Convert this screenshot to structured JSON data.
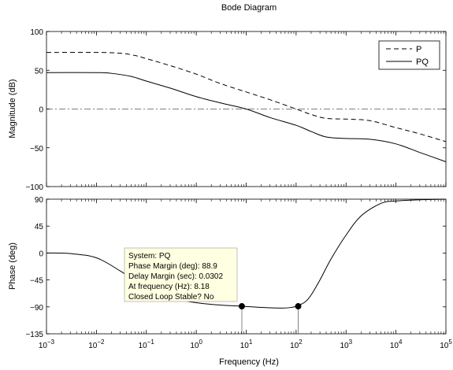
{
  "chart_data": {
    "type": "line",
    "title": "Bode Diagram",
    "xlabel": "Frequency  (Hz)",
    "x_scale": "log",
    "xlim": [
      0.001,
      100000
    ],
    "x_ticks": [
      {
        "value": 0.001,
        "base": "10",
        "exp": "−3"
      },
      {
        "value": 0.01,
        "base": "10",
        "exp": "−2"
      },
      {
        "value": 0.1,
        "base": "10",
        "exp": "−1"
      },
      {
        "value": 1,
        "base": "10",
        "exp": "0"
      },
      {
        "value": 10,
        "base": "10",
        "exp": "1"
      },
      {
        "value": 100,
        "base": "10",
        "exp": "2"
      },
      {
        "value": 1000,
        "base": "10",
        "exp": "3"
      },
      {
        "value": 10000,
        "base": "10",
        "exp": "4"
      },
      {
        "value": 100000,
        "base": "10",
        "exp": "5"
      }
    ],
    "legend": {
      "position": "top-right",
      "entries": [
        {
          "name": "P",
          "dash": "dashed"
        },
        {
          "name": "PQ",
          "dash": "solid"
        }
      ]
    },
    "panels": [
      {
        "ylabel": "Magnitude (dB)",
        "ylim": [
          -100,
          100
        ],
        "y_ticks": [
          {
            "value": 100,
            "label": "100"
          },
          {
            "value": 50,
            "label": "50"
          },
          {
            "value": 0,
            "label": "0"
          },
          {
            "value": -50,
            "label": "−50"
          },
          {
            "value": -100,
            "label": "−100"
          }
        ],
        "reference_line": 0,
        "series": [
          {
            "name": "P",
            "dash": "dashed",
            "x": [
              0.001,
              0.01,
              0.03,
              0.06,
              0.1,
              0.3,
              1,
              3,
              10,
              30,
              100,
              200,
              400,
              1000,
              3000,
              10000,
              30000,
              100000
            ],
            "y": [
              73,
              73,
              72,
              69,
              65,
              56,
              45,
              33,
              22,
              12,
              0,
              -7,
              -12,
              -13,
              -15,
              -24,
              -32,
              -42
            ]
          },
          {
            "name": "PQ",
            "dash": "solid",
            "x": [
              0.001,
              0.01,
              0.02,
              0.05,
              0.1,
              0.3,
              1,
              3,
              10,
              30,
              100,
              200,
              400,
              1000,
              3000,
              10000,
              30000,
              100000
            ],
            "y": [
              47,
              47,
              46,
              42,
              36,
              27,
              16,
              8,
              0,
              -11,
              -21,
              -29,
              -36,
              -38,
              -39,
              -45,
              -56,
              -68
            ]
          }
        ]
      },
      {
        "ylabel": "Phase (deg)",
        "ylim": [
          -135,
          90
        ],
        "y_ticks": [
          {
            "value": 90,
            "label": "90"
          },
          {
            "value": 45,
            "label": "45"
          },
          {
            "value": 0,
            "label": "0"
          },
          {
            "value": -45,
            "label": "−45"
          },
          {
            "value": -90,
            "label": "−90"
          },
          {
            "value": -135,
            "label": "−135"
          }
        ],
        "series": [
          {
            "name": "PQ",
            "dash": "solid",
            "x": [
              0.001,
              0.003,
              0.01,
              0.03,
              0.1,
              0.3,
              1,
              3,
              8.18,
              20,
              50,
              80,
              100,
              150,
              200,
              300,
              500,
              1000,
              2000,
              5000,
              10000,
              30000,
              100000
            ],
            "y": [
              0,
              -1,
              -8,
              -30,
              -58,
              -75,
              -83,
              -87,
              -89,
              -91,
              -92,
              -91,
              -89,
              -82,
              -70,
              -45,
              -10,
              30,
              62,
              83,
              87,
              89,
              90
            ]
          }
        ],
        "markers": [
          {
            "x": 8.18,
            "y": -89
          },
          {
            "x": 110,
            "y": -89
          }
        ]
      }
    ],
    "datatip": {
      "lines": [
        "System: PQ",
        "Phase Margin (deg): 88.9",
        "Delay Margin (sec): 0.0302",
        "At frequency (Hz): 8.18",
        "Closed Loop Stable? No"
      ],
      "background": "#ffffe1"
    }
  }
}
